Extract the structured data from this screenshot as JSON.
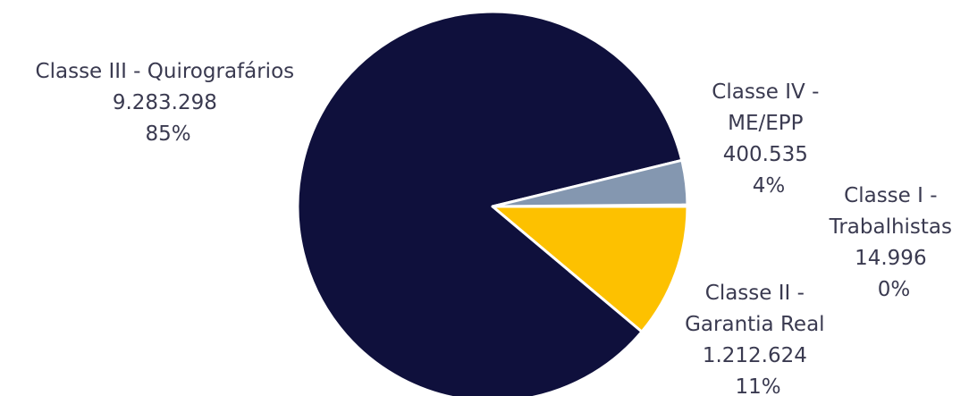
{
  "chart_data": {
    "type": "pie",
    "start_angle_deg": -0.5,
    "direction": "clockwise",
    "slices": [
      {
        "label": [
          "Classe I -",
          "Trabalhistas"
        ],
        "value": "14.996",
        "percent": "0%",
        "numeric_value": 14996,
        "color": "#2f3d7a"
      },
      {
        "label": [
          "Classe II -",
          "Garantia Real"
        ],
        "value": "1.212.624",
        "percent": "11%",
        "numeric_value": 1212624,
        "color": "#fdc100"
      },
      {
        "label": [
          "Classe III - Quirografários"
        ],
        "value": "9.283.298",
        "percent": "85%",
        "numeric_value": 9283298,
        "color": "#0f103c"
      },
      {
        "label": [
          "Classe IV -",
          "ME/EPP"
        ],
        "value": "400.535",
        "percent": "4%",
        "numeric_value": 400535,
        "color": "#8497b0"
      }
    ],
    "legend": "none",
    "slice_border_color": "#ffffff"
  }
}
